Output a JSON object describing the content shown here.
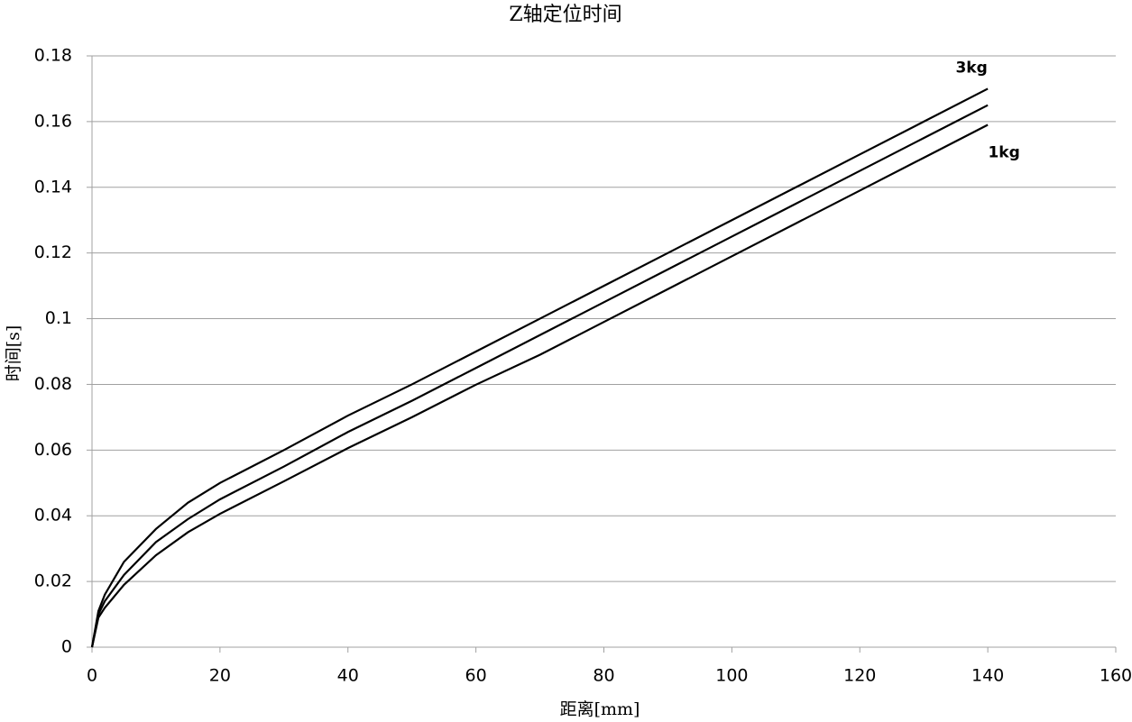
{
  "chart_data": {
    "type": "line",
    "title": "Z轴定位时间",
    "x_label": "距离[mm]",
    "y_label": "时间[s]",
    "x": [
      0,
      1,
      2,
      5,
      10,
      15,
      20,
      30,
      40,
      50,
      60,
      70,
      80,
      90,
      100,
      110,
      120,
      130,
      140
    ],
    "series": [
      {
        "name": "3kg",
        "color": "#000000",
        "values": [
          0,
          0.011,
          0.016,
          0.026,
          0.036,
          0.044,
          0.05,
          0.06,
          0.0705,
          0.08,
          0.09,
          0.1,
          0.11,
          0.12,
          0.13,
          0.14,
          0.15,
          0.16,
          0.17
        ]
      },
      {
        "color": "#000000",
        "values": [
          0,
          0.01,
          0.014,
          0.022,
          0.032,
          0.039,
          0.045,
          0.055,
          0.0655,
          0.075,
          0.085,
          0.095,
          0.105,
          0.115,
          0.125,
          0.135,
          0.145,
          0.155,
          0.165
        ]
      },
      {
        "name": "1kg",
        "color": "#000000",
        "values": [
          0,
          0.009,
          0.012,
          0.019,
          0.028,
          0.035,
          0.0406,
          0.0505,
          0.0606,
          0.07,
          0.0799,
          0.089,
          0.099,
          0.109,
          0.119,
          0.129,
          0.139,
          0.149,
          0.159
        ]
      }
    ],
    "xlim": [
      0,
      160
    ],
    "xticks": [
      0,
      20,
      40,
      60,
      80,
      100,
      120,
      140,
      160
    ],
    "ylim": [
      0,
      0.18
    ],
    "yticks": [
      0,
      0.02,
      0.04,
      0.06,
      0.08,
      0.1,
      0.12,
      0.14,
      0.16,
      0.18
    ],
    "grid": true
  }
}
